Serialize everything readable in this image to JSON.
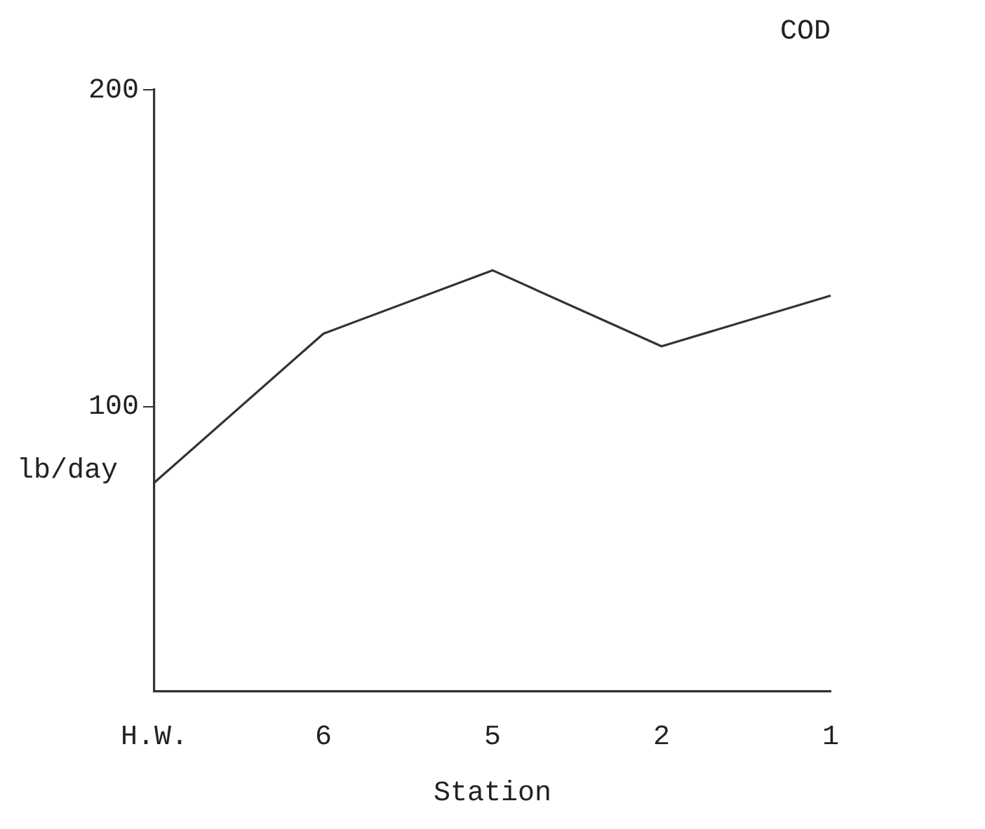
{
  "chart_data": {
    "type": "line",
    "title": "COD",
    "xlabel": "Station",
    "ylabel": "lb/day",
    "categories": [
      "H.W.",
      "6",
      "5",
      "2",
      "1"
    ],
    "series": [
      {
        "color": "#333333",
        "values": [
          76,
          123,
          143,
          119,
          135
        ]
      }
    ],
    "ylim": [
      10,
      200
    ],
    "yticks": [
      100,
      200
    ],
    "grid": false,
    "legend": false,
    "marker": "none",
    "line_style": "solid"
  }
}
